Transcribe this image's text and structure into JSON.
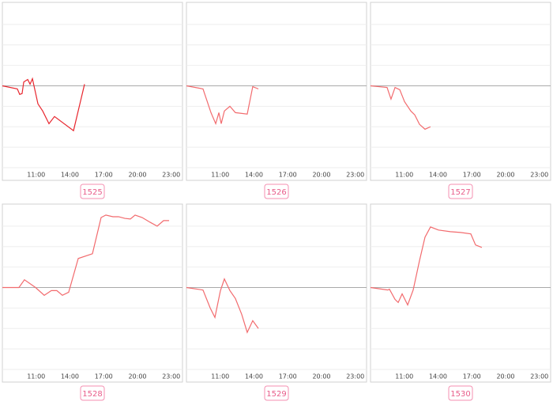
{
  "chart_data": [
    {
      "type": "line",
      "title": "1525",
      "color": "#e8262e",
      "x": [
        8,
        9.33,
        9.54,
        9.75,
        9.9,
        10.25,
        10.46,
        10.67,
        11.16,
        11.58,
        12.14,
        12.63,
        14.32,
        15.3
      ],
      "values": [
        0,
        -0.15,
        -0.42,
        -0.38,
        0.19,
        0.31,
        0.08,
        0.35,
        -0.88,
        -1.23,
        -1.85,
        -1.5,
        -2.19,
        0.08
      ],
      "xlim": [
        8,
        24
      ],
      "ylim": [
        -4,
        4
      ],
      "xticks": [
        {
          "value": 11,
          "label": "11:00"
        },
        {
          "value": 14,
          "label": "14:00"
        },
        {
          "value": 17,
          "label": "17:00"
        },
        {
          "value": 20,
          "label": "20:00"
        },
        {
          "value": 23,
          "label": "23:00"
        }
      ],
      "yticks": [
        -3,
        -2,
        -1,
        0,
        1,
        2,
        3
      ],
      "grid": true
    },
    {
      "type": "line",
      "title": "1526",
      "color": "#f26b6e",
      "x": [
        8,
        9.47,
        10.18,
        10.6,
        10.88,
        11.09,
        11.37,
        11.86,
        12.35,
        13.4,
        13.89,
        14.39
      ],
      "values": [
        0,
        -0.15,
        -1.31,
        -1.85,
        -1.31,
        -1.85,
        -1.23,
        -1,
        -1.31,
        -1.38,
        -0.04,
        -0.15
      ],
      "xlim": [
        8,
        24
      ],
      "ylim": [
        -4,
        4
      ],
      "xticks": [
        {
          "value": 11,
          "label": "11:00"
        },
        {
          "value": 14,
          "label": "14:00"
        },
        {
          "value": 17,
          "label": "17:00"
        },
        {
          "value": 20,
          "label": "20:00"
        },
        {
          "value": 23,
          "label": "23:00"
        }
      ],
      "yticks": [
        -3,
        -2,
        -1,
        0,
        1,
        2,
        3
      ],
      "grid": true
    },
    {
      "type": "line",
      "title": "1527",
      "color": "#f26b6e",
      "x": [
        8,
        9.47,
        9.82,
        10.18,
        10.6,
        11.02,
        11.58,
        11.93,
        12.35,
        12.84,
        13.33
      ],
      "values": [
        0,
        -0.08,
        -0.65,
        -0.08,
        -0.19,
        -0.77,
        -1.23,
        -1.42,
        -1.88,
        -2.12,
        -2
      ],
      "xlim": [
        8,
        24
      ],
      "ylim": [
        -4,
        4
      ],
      "xticks": [
        {
          "value": 11,
          "label": "11:00"
        },
        {
          "value": 14,
          "label": "14:00"
        },
        {
          "value": 17,
          "label": "17:00"
        },
        {
          "value": 20,
          "label": "20:00"
        },
        {
          "value": 23,
          "label": "23:00"
        }
      ],
      "yticks": [
        -3,
        -2,
        -1,
        0,
        1,
        2,
        3
      ],
      "grid": true
    },
    {
      "type": "line",
      "title": "1528",
      "color": "#f26b6e",
      "x": [
        8,
        9.47,
        9.96,
        10.95,
        11.72,
        12.35,
        12.84,
        13.33,
        13.89,
        14.74,
        16,
        16.77,
        17.19,
        17.82,
        18.32,
        18.88,
        19.37,
        19.79,
        20.42,
        21.12,
        21.75,
        22.32,
        22.81
      ],
      "values": [
        0,
        0,
        0.38,
        0,
        -0.38,
        -0.15,
        -0.15,
        -0.38,
        -0.23,
        1.42,
        1.65,
        3.42,
        3.54,
        3.46,
        3.46,
        3.38,
        3.35,
        3.54,
        3.42,
        3.19,
        3,
        3.27,
        3.27
      ],
      "xlim": [
        8,
        24
      ],
      "ylim": [
        -4,
        4
      ],
      "xticks": [
        {
          "value": 11,
          "label": "11:00"
        },
        {
          "value": 14,
          "label": "14:00"
        },
        {
          "value": 17,
          "label": "17:00"
        },
        {
          "value": 20,
          "label": "20:00"
        },
        {
          "value": 23,
          "label": "23:00"
        }
      ],
      "yticks": [
        -3,
        -2,
        -1,
        0,
        1,
        2,
        3
      ],
      "grid": true
    },
    {
      "type": "line",
      "title": "1529",
      "color": "#f26b6e",
      "x": [
        8,
        9.47,
        10.11,
        10.53,
        11.02,
        11.37,
        11.86,
        12.35,
        12.91,
        13.4,
        13.89,
        14.39
      ],
      "values": [
        0,
        -0.12,
        -1,
        -1.46,
        -0.15,
        0.42,
        -0.15,
        -0.54,
        -1.31,
        -2.19,
        -1.62,
        -2
      ],
      "xlim": [
        8,
        24
      ],
      "ylim": [
        -4,
        4
      ],
      "xticks": [
        {
          "value": 11,
          "label": "11:00"
        },
        {
          "value": 14,
          "label": "14:00"
        },
        {
          "value": 17,
          "label": "17:00"
        },
        {
          "value": 20,
          "label": "20:00"
        },
        {
          "value": 23,
          "label": "23:00"
        }
      ],
      "yticks": [
        -3,
        -2,
        -1,
        0,
        1,
        2,
        3
      ],
      "grid": true
    },
    {
      "type": "line",
      "title": "1530",
      "color": "#f26b6e",
      "x": [
        8,
        9.54,
        9.68,
        10.18,
        10.46,
        10.81,
        11.3,
        11.79,
        12.35,
        12.84,
        13.33,
        14.04,
        15.09,
        16,
        16.91,
        17.33,
        17.89
      ],
      "values": [
        0,
        -0.12,
        -0.08,
        -0.58,
        -0.73,
        -0.31,
        -0.85,
        -0.12,
        1.31,
        2.46,
        2.96,
        2.81,
        2.73,
        2.69,
        2.62,
        2.08,
        1.96
      ],
      "xlim": [
        8,
        24
      ],
      "ylim": [
        -4,
        4
      ],
      "xticks": [
        {
          "value": 11,
          "label": "11:00"
        },
        {
          "value": 14,
          "label": "14:00"
        },
        {
          "value": 17,
          "label": "17:00"
        },
        {
          "value": 20,
          "label": "20:00"
        },
        {
          "value": 23,
          "label": "23:00"
        }
      ],
      "yticks": [
        -3,
        -2,
        -1,
        0,
        1,
        2,
        3
      ],
      "grid": true
    }
  ]
}
